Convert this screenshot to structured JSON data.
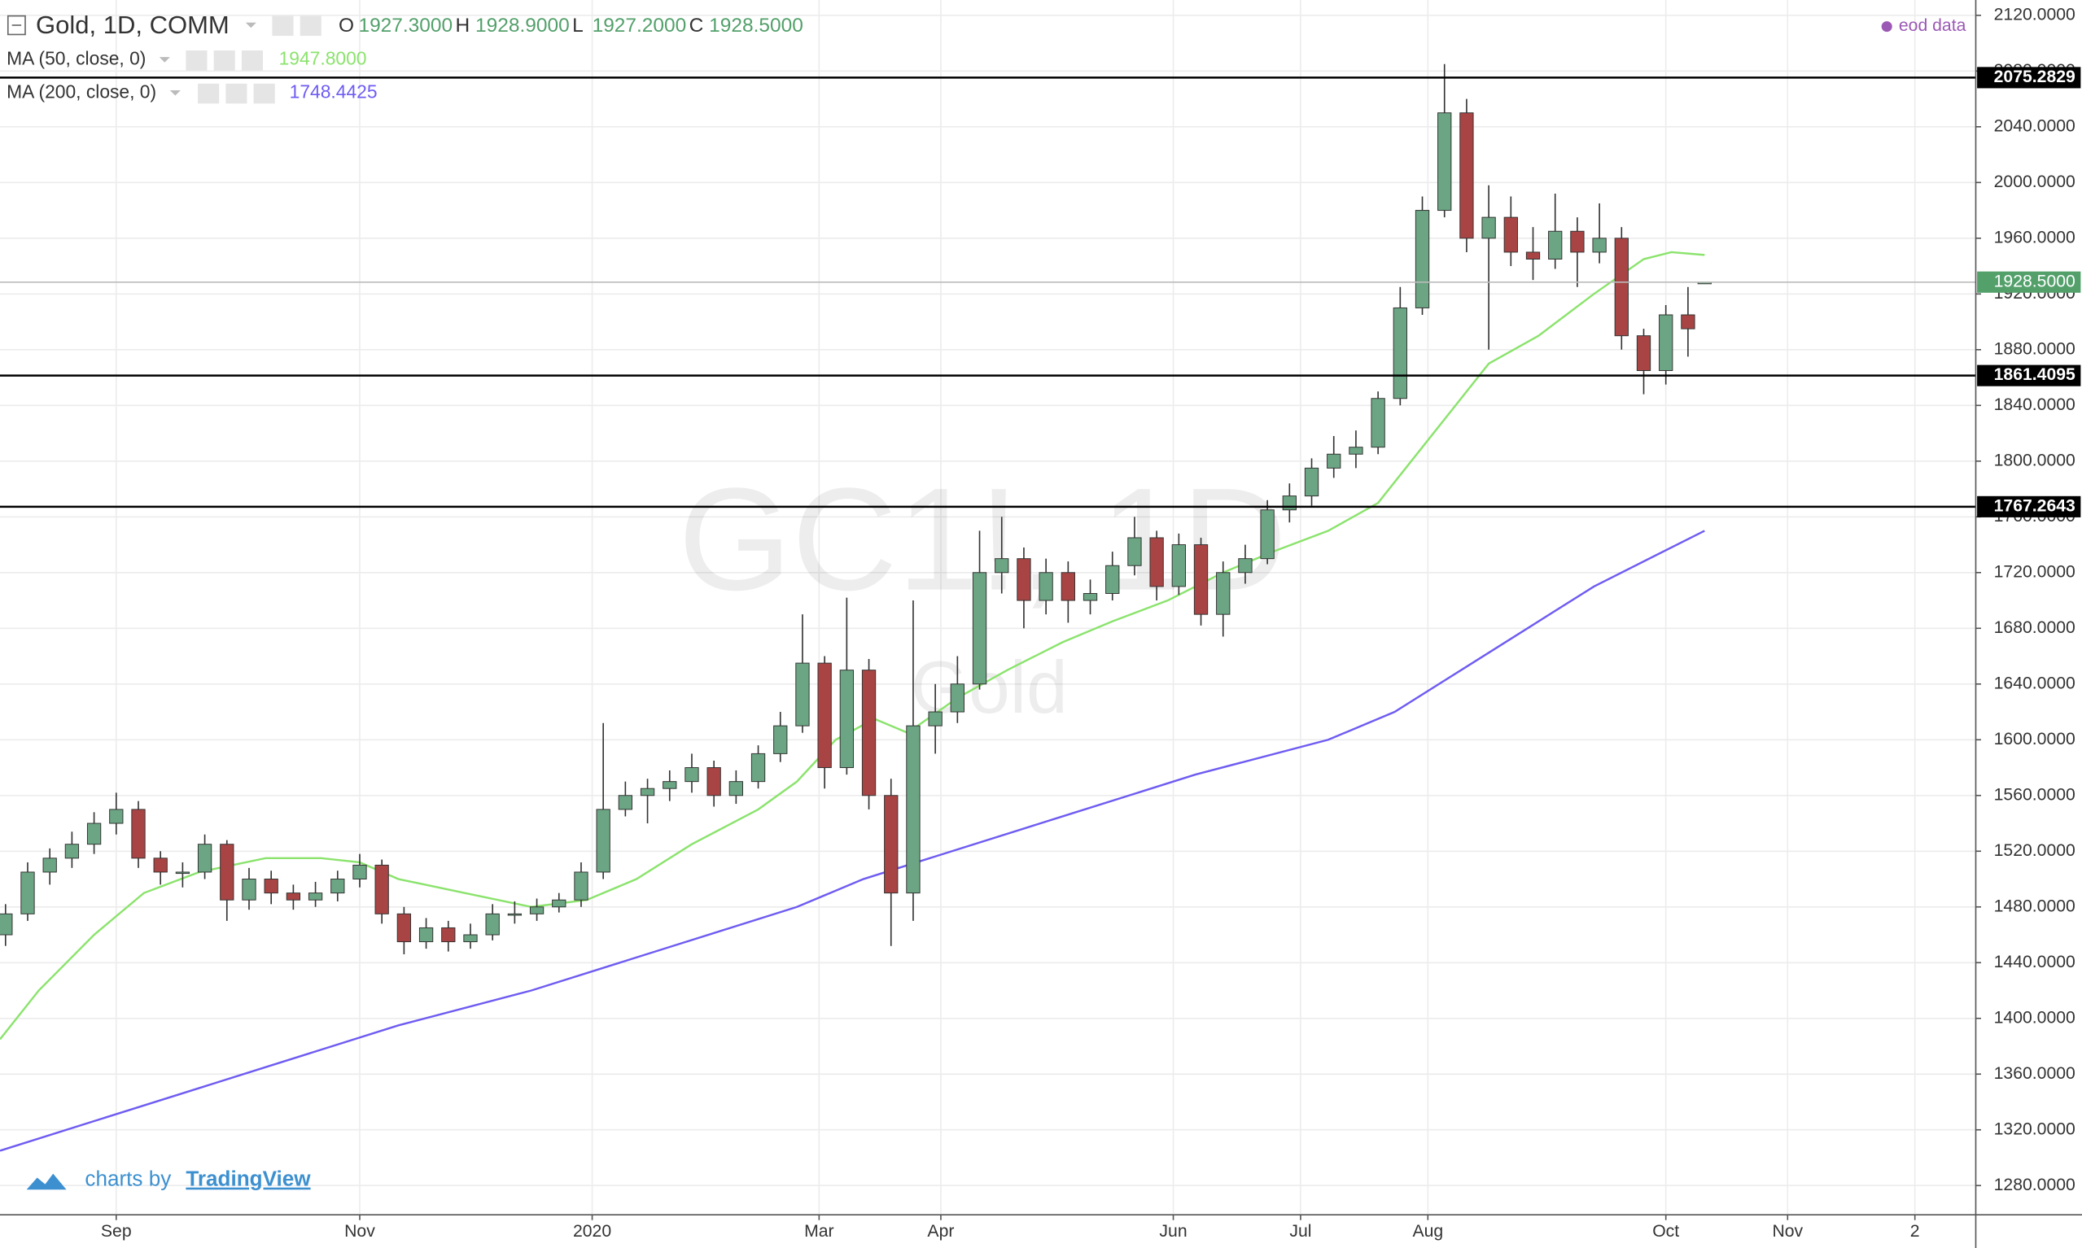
{
  "chart_data": {
    "type": "candlestick",
    "title": "Gold, 1D, COMM",
    "ohlc_legend": [
      {
        "name": "O",
        "value": 1927.3,
        "label": "1927.3000"
      },
      {
        "name": "H",
        "value": 1928.9,
        "label": "1928.9000"
      },
      {
        "name": "L",
        "value": 1927.2,
        "label": "1927.2000"
      },
      {
        "name": "C",
        "value": 1928.5,
        "label": "1928.5000"
      }
    ],
    "source": "eod data",
    "watermark": "GC1!, 1D",
    "watermark_subtitle": "Gold",
    "attribution": "charts by",
    "attribution_link": "TradingView",
    "xlim": [
      0,
      357
    ],
    "xticks": [
      {
        "value": 21,
        "label": "Sep"
      },
      {
        "value": 65,
        "label": "Nov"
      },
      {
        "value": 107,
        "label": "2020"
      },
      {
        "value": 148,
        "label": "Mar"
      },
      {
        "value": 170,
        "label": "Apr"
      },
      {
        "value": 212,
        "label": "Jun"
      },
      {
        "value": 235,
        "label": "Jul"
      },
      {
        "value": 258,
        "label": "Aug"
      },
      {
        "value": 301,
        "label": "Oct"
      },
      {
        "value": 323,
        "label": "Nov"
      },
      {
        "value": 346,
        "label": "2"
      }
    ],
    "ylim": [
      1259,
      2131
    ],
    "yticks": [
      {
        "value": 1280,
        "label": "1280.0000"
      },
      {
        "value": 1320,
        "label": "1320.0000"
      },
      {
        "value": 1360,
        "label": "1360.0000"
      },
      {
        "value": 1400,
        "label": "1400.0000"
      },
      {
        "value": 1440,
        "label": "1440.0000"
      },
      {
        "value": 1480,
        "label": "1480.0000"
      },
      {
        "value": 1520,
        "label": "1520.0000"
      },
      {
        "value": 1560,
        "label": "1560.0000"
      },
      {
        "value": 1600,
        "label": "1600.0000"
      },
      {
        "value": 1640,
        "label": "1640.0000"
      },
      {
        "value": 1680,
        "label": "1680.0000"
      },
      {
        "value": 1720,
        "label": "1720.0000"
      },
      {
        "value": 1760,
        "label": "1760.0000"
      },
      {
        "value": 1800,
        "label": "1800.0000"
      },
      {
        "value": 1840,
        "label": "1840.0000"
      },
      {
        "value": 1880,
        "label": "1880.0000"
      },
      {
        "value": 1920,
        "label": "1920.0000"
      },
      {
        "value": 1960,
        "label": "1960.0000"
      },
      {
        "value": 2000,
        "label": "2000.0000"
      },
      {
        "value": 2040,
        "label": "2040.0000"
      },
      {
        "value": 2080,
        "label": "2080.0000"
      },
      {
        "value": 2120,
        "label": "2120.0000"
      }
    ],
    "grid": true,
    "candles": {
      "up_color": "#6ba583",
      "down_color": "#a84443",
      "x": [
        1,
        5,
        9,
        13,
        17,
        21,
        25,
        29,
        33,
        37,
        41,
        45,
        49,
        53,
        57,
        61,
        65,
        69,
        73,
        77,
        81,
        85,
        89,
        93,
        97,
        101,
        105,
        109,
        113,
        117,
        121,
        125,
        129,
        133,
        137,
        141,
        145,
        149,
        153,
        157,
        161,
        165,
        169,
        173,
        177,
        181,
        185,
        189,
        193,
        197,
        201,
        205,
        209,
        213,
        217,
        221,
        225,
        229,
        233,
        237,
        241,
        245,
        249,
        253,
        257,
        261,
        265,
        269,
        273,
        277,
        281,
        285,
        289,
        293,
        297,
        301,
        305,
        308
      ],
      "open": [
        1460,
        1475,
        1505,
        1515,
        1525,
        1540,
        1550,
        1515,
        1505,
        1505,
        1525,
        1485,
        1500,
        1490,
        1485,
        1490,
        1500,
        1510,
        1475,
        1455,
        1465,
        1455,
        1460,
        1475,
        1475,
        1480,
        1485,
        1505,
        1550,
        1560,
        1565,
        1570,
        1580,
        1560,
        1570,
        1590,
        1610,
        1655,
        1580,
        1650,
        1560,
        1490,
        1610,
        1620,
        1640,
        1720,
        1730,
        1700,
        1720,
        1700,
        1705,
        1725,
        1745,
        1710,
        1740,
        1690,
        1720,
        1730,
        1765,
        1775,
        1795,
        1805,
        1810,
        1845,
        1910,
        1980,
        2050,
        1960,
        1975,
        1950,
        1945,
        1965,
        1950,
        1960,
        1890,
        1865,
        1905,
        1927.3
      ],
      "high": [
        1482,
        1512,
        1522,
        1534,
        1548,
        1562,
        1556,
        1520,
        1512,
        1532,
        1528,
        1508,
        1506,
        1496,
        1498,
        1506,
        1518,
        1514,
        1480,
        1472,
        1470,
        1468,
        1482,
        1484,
        1486,
        1490,
        1512,
        1612,
        1570,
        1572,
        1578,
        1590,
        1585,
        1578,
        1596,
        1620,
        1690,
        1660,
        1702,
        1658,
        1572,
        1700,
        1640,
        1660,
        1750,
        1760,
        1738,
        1730,
        1728,
        1715,
        1735,
        1760,
        1750,
        1748,
        1745,
        1728,
        1740,
        1772,
        1784,
        1802,
        1818,
        1822,
        1850,
        1925,
        1990,
        2085,
        2060,
        1998,
        1990,
        1968,
        1992,
        1975,
        1985,
        1968,
        1895,
        1912,
        1925,
        1928.9
      ],
      "low": [
        1452,
        1470,
        1496,
        1508,
        1518,
        1532,
        1508,
        1496,
        1494,
        1500,
        1470,
        1478,
        1482,
        1478,
        1480,
        1484,
        1494,
        1468,
        1446,
        1450,
        1448,
        1450,
        1456,
        1468,
        1470,
        1476,
        1480,
        1500,
        1545,
        1540,
        1556,
        1562,
        1552,
        1554,
        1565,
        1584,
        1605,
        1565,
        1575,
        1550,
        1452,
        1470,
        1590,
        1612,
        1636,
        1705,
        1680,
        1690,
        1684,
        1690,
        1700,
        1718,
        1700,
        1704,
        1682,
        1674,
        1712,
        1726,
        1756,
        1768,
        1788,
        1795,
        1805,
        1840,
        1905,
        1975,
        1950,
        1880,
        1940,
        1930,
        1938,
        1925,
        1942,
        1880,
        1848,
        1855,
        1875,
        1927.2
      ],
      "close": [
        1475,
        1505,
        1515,
        1525,
        1540,
        1550,
        1515,
        1505,
        1505,
        1525,
        1485,
        1500,
        1490,
        1485,
        1490,
        1500,
        1510,
        1475,
        1455,
        1465,
        1455,
        1460,
        1475,
        1475,
        1480,
        1485,
        1505,
        1550,
        1560,
        1565,
        1570,
        1580,
        1560,
        1570,
        1590,
        1610,
        1655,
        1580,
        1650,
        1560,
        1490,
        1610,
        1620,
        1640,
        1720,
        1730,
        1700,
        1720,
        1700,
        1705,
        1725,
        1745,
        1710,
        1740,
        1690,
        1720,
        1730,
        1765,
        1775,
        1795,
        1805,
        1810,
        1845,
        1910,
        1980,
        2050,
        1960,
        1975,
        1950,
        1945,
        1965,
        1950,
        1960,
        1890,
        1865,
        1905,
        1895,
        1928.5
      ]
    },
    "series": [
      {
        "name": "MA (50, close, 0)",
        "color": "#8be36d",
        "last_value": {
          "value": 1947.8,
          "label": "1947.8000"
        },
        "x": [
          0,
          7,
          17,
          26,
          36,
          48,
          58,
          65,
          72,
          84,
          96,
          106,
          115,
          125,
          137,
          144,
          151,
          158,
          164,
          173,
          182,
          192,
          201,
          211,
          221,
          230,
          240,
          249,
          259,
          269,
          278,
          288,
          297,
          302,
          308
        ],
        "values": [
          1385,
          1420,
          1460,
          1490,
          1505,
          1515,
          1515,
          1512,
          1500,
          1490,
          1480,
          1485,
          1500,
          1525,
          1550,
          1570,
          1600,
          1615,
          1605,
          1630,
          1650,
          1670,
          1685,
          1700,
          1720,
          1735,
          1750,
          1770,
          1820,
          1870,
          1890,
          1920,
          1945,
          1950,
          1948
        ]
      },
      {
        "name": "MA (200, close, 0)",
        "color": "#6e5cf2",
        "last_value": {
          "value": 1748.4425,
          "label": "1748.4425"
        },
        "x": [
          0,
          24,
          48,
          72,
          96,
          120,
          144,
          156,
          168,
          192,
          216,
          240,
          252,
          264,
          276,
          288,
          308
        ],
        "values": [
          1305,
          1335,
          1365,
          1395,
          1420,
          1450,
          1480,
          1500,
          1515,
          1545,
          1575,
          1600,
          1620,
          1650,
          1680,
          1710,
          1750
        ]
      }
    ],
    "levels": [
      {
        "value": 2075.2829,
        "label": "2075.2829"
      },
      {
        "value": 1861.4095,
        "label": "1861.4095"
      },
      {
        "value": 1767.2643,
        "label": "1767.2643"
      }
    ],
    "last_price": {
      "value": 1928.5,
      "label": "1928.5000",
      "color": "#53a06b"
    }
  }
}
